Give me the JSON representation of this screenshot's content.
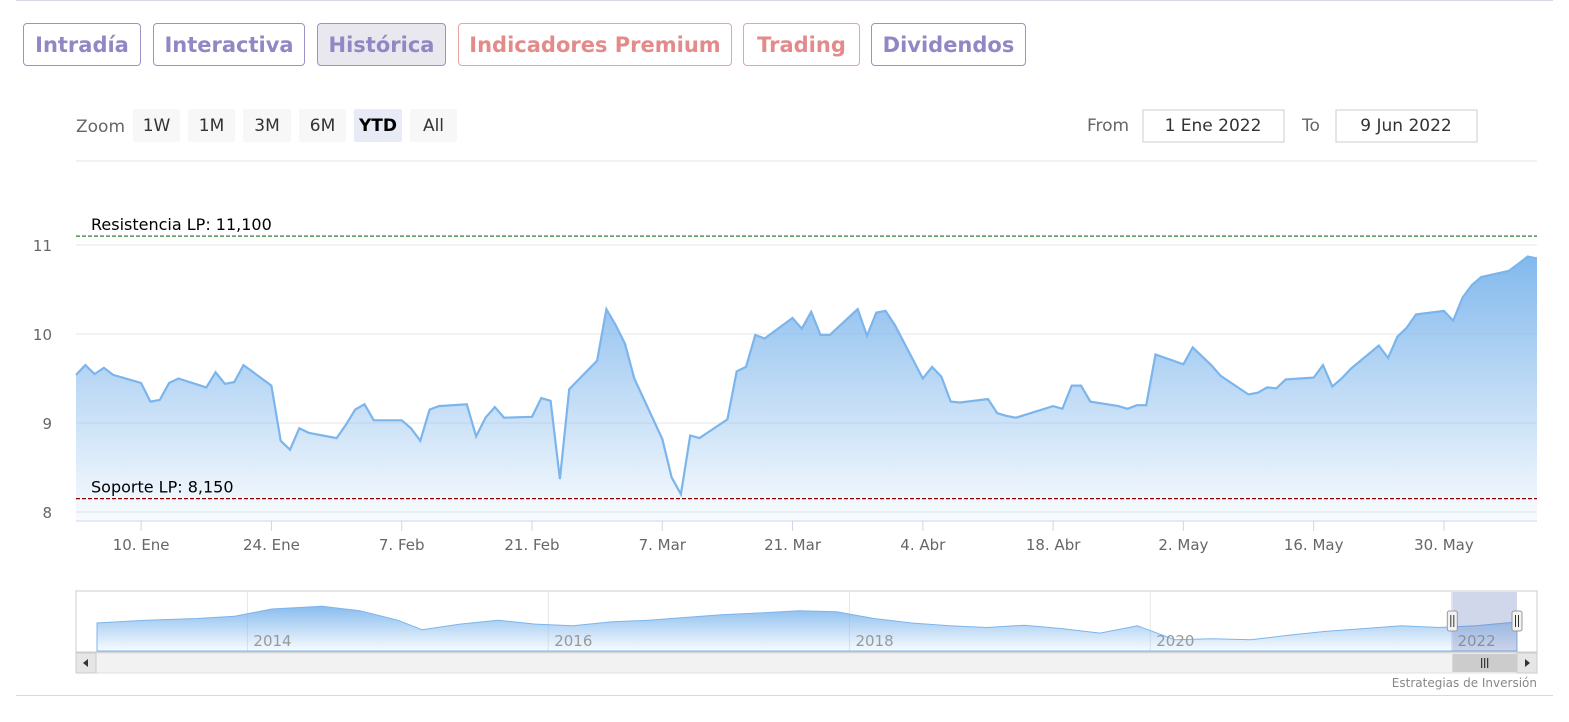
{
  "tabs": [
    {
      "label": "Intradía",
      "variant": "normal"
    },
    {
      "label": "Interactiva",
      "variant": "normal"
    },
    {
      "label": "Histórica",
      "variant": "active"
    },
    {
      "label": "Indicadores Premium",
      "variant": "red"
    },
    {
      "label": "Trading",
      "variant": "red"
    },
    {
      "label": "Dividendos",
      "variant": "normal"
    }
  ],
  "range_selector": {
    "zoom_label": "Zoom",
    "buttons": [
      "1W",
      "1M",
      "3M",
      "6M",
      "YTD",
      "All"
    ],
    "selected": "YTD",
    "from_label": "From",
    "from_value": "1 Ene 2022",
    "to_label": "To",
    "to_value": "9 Jun 2022"
  },
  "credits": "Estrategias de Inversión",
  "colors": {
    "line": "#7cb5ec",
    "resistance": "#2e7d32",
    "support": "#8b0000"
  },
  "chart_data": {
    "type": "area",
    "x_start": "2022-01-03",
    "x_end": "2022-06-09",
    "ylim": [
      8,
      11.1
    ],
    "yticks": [
      8,
      9,
      10,
      11
    ],
    "xtick_labels": [
      "10. Ene",
      "24. Ene",
      "7. Feb",
      "21. Feb",
      "7. Mar",
      "21. Mar",
      "4. Abr",
      "18. Abr",
      "2. May",
      "16. May",
      "30. May"
    ],
    "xtick_dates": [
      "2022-01-10",
      "2022-01-24",
      "2022-02-07",
      "2022-02-21",
      "2022-03-07",
      "2022-03-21",
      "2022-04-04",
      "2022-04-18",
      "2022-05-02",
      "2022-05-16",
      "2022-05-30"
    ],
    "lines": [
      {
        "label": "Resistencia LP: 11,100",
        "value": 11.1,
        "style": "dashed"
      },
      {
        "label": "Soporte LP: 8,150",
        "value": 8.15,
        "style": "dashed"
      }
    ],
    "series": [
      {
        "values": [
          [
            "2022-01-03",
            9.54
          ],
          [
            "2022-01-04",
            9.65
          ],
          [
            "2022-01-05",
            9.55
          ],
          [
            "2022-01-06",
            9.62
          ],
          [
            "2022-01-07",
            9.54
          ],
          [
            "2022-01-10",
            9.45
          ],
          [
            "2022-01-11",
            9.24
          ],
          [
            "2022-01-12",
            9.26
          ],
          [
            "2022-01-13",
            9.45
          ],
          [
            "2022-01-14",
            9.5
          ],
          [
            "2022-01-17",
            9.4
          ],
          [
            "2022-01-18",
            9.57
          ],
          [
            "2022-01-19",
            9.44
          ],
          [
            "2022-01-20",
            9.46
          ],
          [
            "2022-01-21",
            9.65
          ],
          [
            "2022-01-24",
            9.42
          ],
          [
            "2022-01-25",
            8.8
          ],
          [
            "2022-01-26",
            8.7
          ],
          [
            "2022-01-27",
            8.94
          ],
          [
            "2022-01-28",
            8.89
          ],
          [
            "2022-01-31",
            8.83
          ],
          [
            "2022-02-01",
            8.98
          ],
          [
            "2022-02-02",
            9.15
          ],
          [
            "2022-02-03",
            9.21
          ],
          [
            "2022-02-04",
            9.03
          ],
          [
            "2022-02-07",
            9.03
          ],
          [
            "2022-02-08",
            8.94
          ],
          [
            "2022-02-09",
            8.8
          ],
          [
            "2022-02-10",
            9.15
          ],
          [
            "2022-02-11",
            9.19
          ],
          [
            "2022-02-14",
            9.21
          ],
          [
            "2022-02-15",
            8.85
          ],
          [
            "2022-02-16",
            9.06
          ],
          [
            "2022-02-17",
            9.18
          ],
          [
            "2022-02-18",
            9.06
          ],
          [
            "2022-02-21",
            9.07
          ],
          [
            "2022-02-22",
            9.28
          ],
          [
            "2022-02-23",
            9.25
          ],
          [
            "2022-02-24",
            8.37
          ],
          [
            "2022-02-25",
            9.38
          ],
          [
            "2022-02-28",
            9.7
          ],
          [
            "2022-03-01",
            10.28
          ],
          [
            "2022-03-02",
            10.1
          ],
          [
            "2022-03-03",
            9.89
          ],
          [
            "2022-03-04",
            9.5
          ],
          [
            "2022-03-07",
            8.82
          ],
          [
            "2022-03-08",
            8.39
          ],
          [
            "2022-03-09",
            8.2
          ],
          [
            "2022-03-10",
            8.86
          ],
          [
            "2022-03-11",
            8.83
          ],
          [
            "2022-03-14",
            9.04
          ],
          [
            "2022-03-15",
            9.58
          ],
          [
            "2022-03-16",
            9.63
          ],
          [
            "2022-03-17",
            9.99
          ],
          [
            "2022-03-18",
            9.95
          ],
          [
            "2022-03-21",
            10.18
          ],
          [
            "2022-03-22",
            10.06
          ],
          [
            "2022-03-23",
            10.25
          ],
          [
            "2022-03-24",
            9.99
          ],
          [
            "2022-03-25",
            9.99
          ],
          [
            "2022-03-28",
            10.28
          ],
          [
            "2022-03-29",
            9.98
          ],
          [
            "2022-03-30",
            10.24
          ],
          [
            "2022-03-31",
            10.26
          ],
          [
            "2022-04-01",
            10.1
          ],
          [
            "2022-04-04",
            9.5
          ],
          [
            "2022-04-05",
            9.63
          ],
          [
            "2022-04-06",
            9.52
          ],
          [
            "2022-04-07",
            9.24
          ],
          [
            "2022-04-08",
            9.23
          ],
          [
            "2022-04-11",
            9.27
          ],
          [
            "2022-04-12",
            9.11
          ],
          [
            "2022-04-13",
            9.08
          ],
          [
            "2022-04-14",
            9.06
          ],
          [
            "2022-04-18",
            9.19
          ],
          [
            "2022-04-19",
            9.16
          ],
          [
            "2022-04-20",
            9.42
          ],
          [
            "2022-04-21",
            9.42
          ],
          [
            "2022-04-22",
            9.24
          ],
          [
            "2022-04-25",
            9.19
          ],
          [
            "2022-04-26",
            9.16
          ],
          [
            "2022-04-27",
            9.2
          ],
          [
            "2022-04-28",
            9.2
          ],
          [
            "2022-04-29",
            9.77
          ],
          [
            "2022-05-02",
            9.66
          ],
          [
            "2022-05-03",
            9.85
          ],
          [
            "2022-05-04",
            9.75
          ],
          [
            "2022-05-05",
            9.65
          ],
          [
            "2022-05-06",
            9.53
          ],
          [
            "2022-05-09",
            9.32
          ],
          [
            "2022-05-10",
            9.34
          ],
          [
            "2022-05-11",
            9.4
          ],
          [
            "2022-05-12",
            9.39
          ],
          [
            "2022-05-13",
            9.49
          ],
          [
            "2022-05-16",
            9.51
          ],
          [
            "2022-05-17",
            9.65
          ],
          [
            "2022-05-18",
            9.41
          ],
          [
            "2022-05-19",
            9.5
          ],
          [
            "2022-05-20",
            9.61
          ],
          [
            "2022-05-23",
            9.87
          ],
          [
            "2022-05-24",
            9.73
          ],
          [
            "2022-05-25",
            9.97
          ],
          [
            "2022-05-26",
            10.07
          ],
          [
            "2022-05-27",
            10.22
          ],
          [
            "2022-05-30",
            10.26
          ],
          [
            "2022-05-31",
            10.15
          ],
          [
            "2022-06-01",
            10.41
          ],
          [
            "2022-06-02",
            10.55
          ],
          [
            "2022-06-03",
            10.64
          ],
          [
            "2022-06-06",
            10.71
          ],
          [
            "2022-06-07",
            10.79
          ],
          [
            "2022-06-08",
            10.87
          ],
          [
            "2022-06-09",
            10.85
          ]
        ]
      }
    ],
    "navigator": {
      "x_start": "2013-01-01",
      "x_end": "2022-06-09",
      "xtick_labels": [
        "2014",
        "2016",
        "2018",
        "2020",
        "2022"
      ],
      "xtick_dates": [
        "2014-01-01",
        "2016-01-01",
        "2018-01-01",
        "2020-01-01",
        "2022-01-01"
      ],
      "selection": [
        "2022-01-03",
        "2022-06-09"
      ],
      "values": [
        [
          "2013-01-01",
          0.5
        ],
        [
          "2013-05-01",
          0.55
        ],
        [
          "2013-09-01",
          0.58
        ],
        [
          "2013-12-01",
          0.62
        ],
        [
          "2014-03-01",
          0.75
        ],
        [
          "2014-07-01",
          0.8
        ],
        [
          "2014-10-01",
          0.72
        ],
        [
          "2015-01-01",
          0.55
        ],
        [
          "2015-03-01",
          0.38
        ],
        [
          "2015-06-01",
          0.48
        ],
        [
          "2015-09-01",
          0.55
        ],
        [
          "2015-12-01",
          0.48
        ],
        [
          "2016-03-01",
          0.45
        ],
        [
          "2016-06-01",
          0.52
        ],
        [
          "2016-09-01",
          0.55
        ],
        [
          "2016-12-01",
          0.6
        ],
        [
          "2017-03-01",
          0.65
        ],
        [
          "2017-06-01",
          0.68
        ],
        [
          "2017-09-01",
          0.72
        ],
        [
          "2017-12-01",
          0.7
        ],
        [
          "2018-03-01",
          0.58
        ],
        [
          "2018-06-01",
          0.5
        ],
        [
          "2018-09-01",
          0.45
        ],
        [
          "2018-12-01",
          0.42
        ],
        [
          "2019-03-01",
          0.46
        ],
        [
          "2019-06-01",
          0.4
        ],
        [
          "2019-09-01",
          0.32
        ],
        [
          "2019-12-01",
          0.45
        ],
        [
          "2020-03-01",
          0.2
        ],
        [
          "2020-06-01",
          0.22
        ],
        [
          "2020-09-01",
          0.2
        ],
        [
          "2020-12-01",
          0.28
        ],
        [
          "2021-03-01",
          0.35
        ],
        [
          "2021-06-01",
          0.4
        ],
        [
          "2021-09-01",
          0.45
        ],
        [
          "2021-12-01",
          0.42
        ],
        [
          "2022-03-01",
          0.45
        ],
        [
          "2022-06-09",
          0.52
        ]
      ]
    }
  }
}
